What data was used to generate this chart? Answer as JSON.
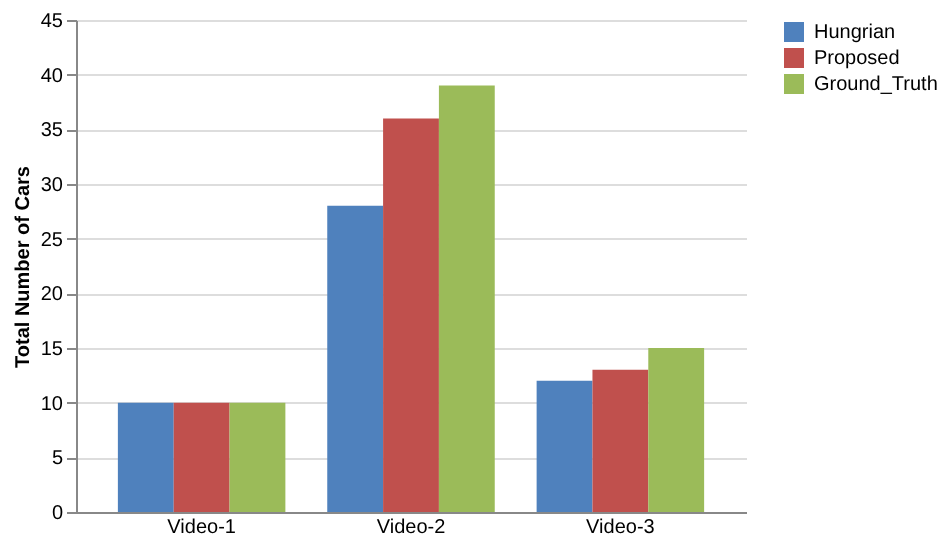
{
  "chart_data": {
    "type": "bar",
    "ylabel": "Total Number of Cars",
    "categories": [
      "Video-1",
      "Video-2",
      "Video-3"
    ],
    "series": [
      {
        "name": "Hungrian",
        "color": "#4f81bd",
        "values": [
          10,
          28,
          12
        ]
      },
      {
        "name": "Proposed",
        "color": "#c0504d",
        "values": [
          10,
          36,
          13
        ]
      },
      {
        "name": "Ground_Truth",
        "color": "#9bbb59",
        "values": [
          10,
          39,
          15
        ]
      }
    ],
    "ylim": [
      0,
      45
    ],
    "yticks": [
      0,
      5,
      10,
      15,
      20,
      25,
      30,
      35,
      40,
      45
    ],
    "grid": "y",
    "legend": "right"
  }
}
